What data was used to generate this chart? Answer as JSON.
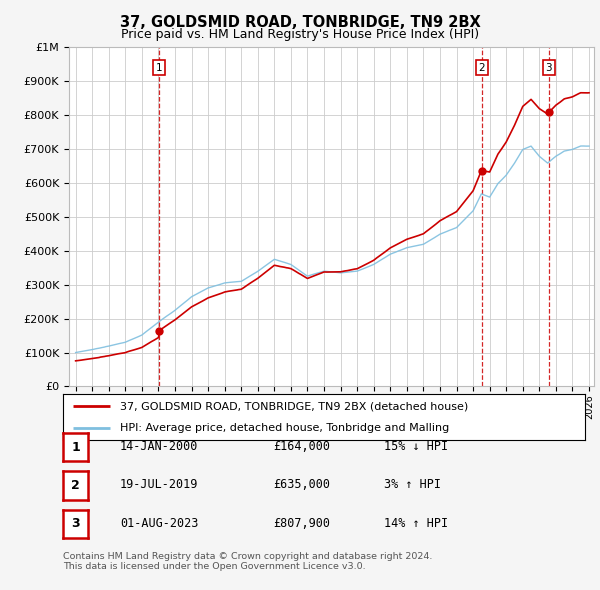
{
  "title": "37, GOLDSMID ROAD, TONBRIDGE, TN9 2BX",
  "subtitle": "Price paid vs. HM Land Registry's House Price Index (HPI)",
  "ylim": [
    0,
    1000000
  ],
  "yticks": [
    0,
    100000,
    200000,
    300000,
    400000,
    500000,
    600000,
    700000,
    800000,
    900000,
    1000000
  ],
  "ytick_labels": [
    "£0",
    "£100K",
    "£200K",
    "£300K",
    "£400K",
    "£500K",
    "£600K",
    "£700K",
    "£800K",
    "£900K",
    "£1M"
  ],
  "hpi_color": "#7fbfdf",
  "price_color": "#cc0000",
  "dashed_color": "#cc0000",
  "background_color": "#f5f5f5",
  "plot_bg_color": "#ffffff",
  "grid_color": "#cccccc",
  "trans_dates": [
    2000.04,
    2019.54,
    2023.58
  ],
  "trans_prices": [
    164000,
    635000,
    807900
  ],
  "trans_labels": [
    "1",
    "2",
    "3"
  ],
  "legend_line1": "37, GOLDSMID ROAD, TONBRIDGE, TN9 2BX (detached house)",
  "legend_line2": "HPI: Average price, detached house, Tonbridge and Malling",
  "table_rows": [
    {
      "num": "1",
      "date": "14-JAN-2000",
      "price": "£164,000",
      "hpi": "15% ↓ HPI"
    },
    {
      "num": "2",
      "date": "19-JUL-2019",
      "price": "£635,000",
      "hpi": "3% ↑ HPI"
    },
    {
      "num": "3",
      "date": "01-AUG-2023",
      "price": "£807,900",
      "hpi": "14% ↑ HPI"
    }
  ],
  "footnote": "Contains HM Land Registry data © Crown copyright and database right 2024.\nThis data is licensed under the Open Government Licence v3.0."
}
